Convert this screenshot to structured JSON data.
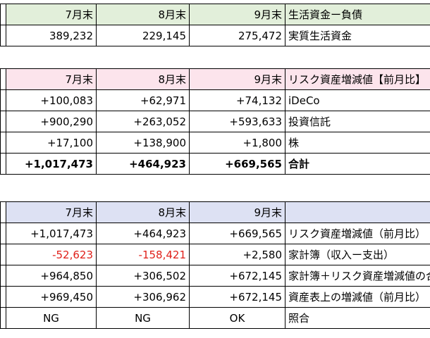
{
  "table1": {
    "headers": [
      "7月末",
      "8月末",
      "9月末",
      "生活資金ー負債"
    ],
    "rows": [
      {
        "values": [
          "389,232",
          "229,145",
          "275,472"
        ],
        "label": "実質生活資金"
      }
    ]
  },
  "table2": {
    "headers": [
      "7月末",
      "8月末",
      "9月末",
      "リスク資産増減値【前月比】"
    ],
    "rows": [
      {
        "values": [
          "+100,083",
          "+62,971",
          "+74,132"
        ],
        "label": "iDeCo"
      },
      {
        "values": [
          "+900,290",
          "+263,052",
          "+593,633"
        ],
        "label": "投資信託"
      },
      {
        "values": [
          "+17,100",
          "+138,900",
          "+1,800"
        ],
        "label": "株"
      },
      {
        "values": [
          "+1,017,473",
          "+464,923",
          "+669,565"
        ],
        "label": "合計"
      }
    ]
  },
  "table3": {
    "headers": [
      "7月末",
      "8月末",
      "9月末",
      ""
    ],
    "rows": [
      {
        "values": [
          "+1,017,473",
          "+464,923",
          "+669,565"
        ],
        "label": "リスク資産増減値（前月比）"
      },
      {
        "values": [
          "-52,623",
          "-158,421",
          "+2,580"
        ],
        "label": "家計簿（収入ー支出）"
      },
      {
        "values": [
          "+964,850",
          "+306,502",
          "+672,145"
        ],
        "label": "家計簿＋リスク資産増減値の合計"
      },
      {
        "values": [
          "+969,450",
          "+306,962",
          "+672,145"
        ],
        "label": "資産表上の増減値（前月比）"
      },
      {
        "values": [
          "NG",
          "NG",
          "OK"
        ],
        "label": "照合"
      }
    ]
  },
  "colors": {
    "header1": "#e2efda",
    "header2": "#fce4ec",
    "header3": "#dde1f3",
    "negative": "#e0201a"
  }
}
